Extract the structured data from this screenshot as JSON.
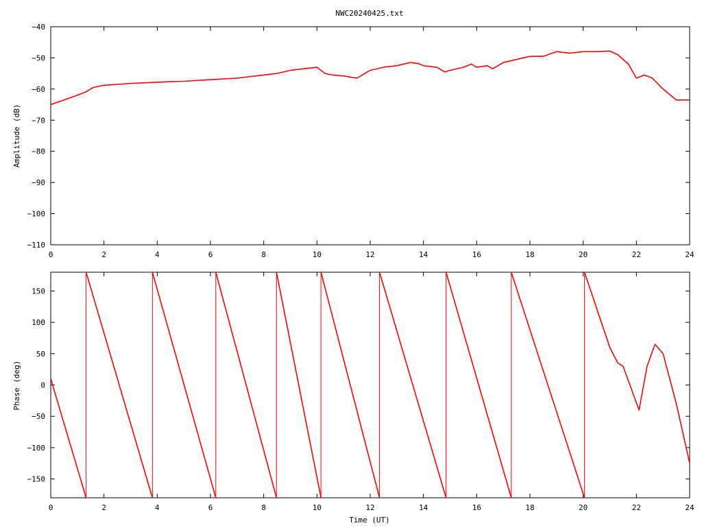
{
  "title": "NWC20240425.txt",
  "colors": {
    "series": "#ff0000",
    "axes": "#000000",
    "background": "#ffffff"
  },
  "chart_data": [
    {
      "type": "line",
      "panel": "amplitude",
      "ylabel": "Amplitude (dB)",
      "xlabel": "",
      "xlim": [
        0,
        24
      ],
      "ylim": [
        -110,
        -40
      ],
      "xticks": [
        "0",
        "2",
        "4",
        "6",
        "8",
        "10",
        "12",
        "14",
        "16",
        "18",
        "20",
        "22",
        "24"
      ],
      "yticks": [
        "-110",
        "-100",
        "-90",
        "-80",
        "-70",
        "-60",
        "-50",
        "-40"
      ],
      "grid": false,
      "series": [
        {
          "x": [
            0,
            0.5,
            1.0,
            1.3,
            1.6,
            2.0,
            2.5,
            3.0,
            3.5,
            4.0,
            5.0,
            6.0,
            7.0,
            8.0,
            8.5,
            9.0,
            9.5,
            10.0,
            10.3,
            10.6,
            11.0,
            11.5,
            11.7,
            12.0,
            12.5,
            13.0,
            13.5,
            13.8,
            14.0,
            14.5,
            14.8,
            15.0,
            15.5,
            15.8,
            16.0,
            16.4,
            16.6,
            17.0,
            17.5,
            18.0,
            18.5,
            19.0,
            19.5,
            20.0,
            20.5,
            21.0,
            21.3,
            21.7,
            22.0,
            22.3,
            22.6,
            23.0,
            23.5,
            24.0
          ],
          "y": [
            -65,
            -63.5,
            -62,
            -61,
            -59.5,
            -58.8,
            -58.5,
            -58.2,
            -58,
            -57.8,
            -57.5,
            -57,
            -56.5,
            -55.5,
            -55,
            -54,
            -53.5,
            -53,
            -55,
            -55.5,
            -55.8,
            -56.5,
            -55.5,
            -54,
            -53,
            -52.5,
            -51.5,
            -51.8,
            -52.5,
            -53,
            -54.5,
            -54,
            -53,
            -52,
            -53,
            -52.5,
            -53.5,
            -51.5,
            -50.5,
            -49.5,
            -49.5,
            -48,
            -48.5,
            -48,
            -48,
            -47.8,
            -49,
            -52,
            -56.5,
            -55.5,
            -56.5,
            -60,
            -63.5,
            -63.5
          ]
        }
      ]
    },
    {
      "type": "line",
      "panel": "phase",
      "ylabel": "Phase (deg)",
      "xlabel": "Time (UT)",
      "xlim": [
        0,
        24
      ],
      "ylim": [
        -180,
        180
      ],
      "xticks": [
        "0",
        "2",
        "4",
        "6",
        "8",
        "10",
        "12",
        "14",
        "16",
        "18",
        "20",
        "22",
        "24"
      ],
      "yticks": [
        "-150",
        "-100",
        "-50",
        "0",
        "50",
        "100",
        "150"
      ],
      "grid": false,
      "segments": [
        {
          "x": [
            0,
            1.33
          ],
          "y": [
            10,
            -180
          ]
        },
        {
          "x": [
            1.33,
            3.82
          ],
          "y": [
            180,
            -180
          ]
        },
        {
          "x": [
            3.82,
            6.2
          ],
          "y": [
            180,
            -180
          ]
        },
        {
          "x": [
            6.2,
            8.48
          ],
          "y": [
            180,
            -180
          ]
        },
        {
          "x": [
            8.48,
            10.15
          ],
          "y": [
            180,
            -180
          ]
        },
        {
          "x": [
            10.15,
            12.35
          ],
          "y": [
            180,
            -180
          ]
        },
        {
          "x": [
            12.35,
            14.85
          ],
          "y": [
            180,
            -180
          ]
        },
        {
          "x": [
            14.85,
            17.3
          ],
          "y": [
            180,
            -180
          ]
        },
        {
          "x": [
            17.3,
            20.05
          ],
          "y": [
            180,
            -180
          ]
        },
        {
          "x": [
            20.05,
            21.0,
            21.3,
            21.5,
            22.1,
            22.4,
            22.7,
            23.0,
            23.5,
            24.0
          ],
          "y": [
            180,
            60,
            35,
            30,
            -40,
            30,
            65,
            50,
            -30,
            -125
          ]
        }
      ]
    }
  ]
}
